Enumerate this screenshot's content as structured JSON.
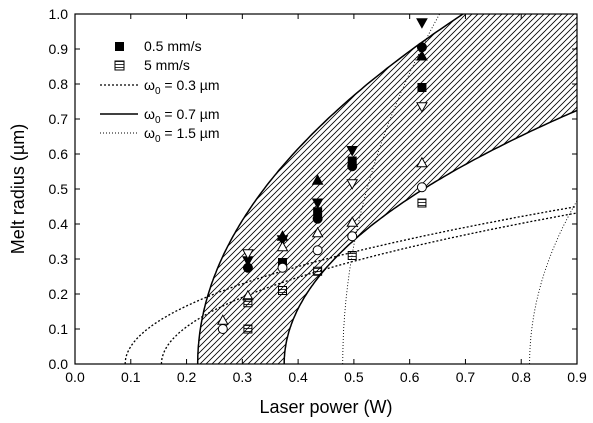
{
  "chart_data": {
    "type": "scatter",
    "xlabel": "Laser power (W)",
    "ylabel": "Melt radius (µm)",
    "xlim": [
      0.0,
      0.9
    ],
    "ylim": [
      0.0,
      1.0
    ],
    "x_ticks": [
      "0.0",
      "0.1",
      "0.2",
      "0.3",
      "0.4",
      "0.5",
      "0.6",
      "0.7",
      "0.8",
      "0.9"
    ],
    "y_ticks": [
      "0.0",
      "0.1",
      "0.2",
      "0.3",
      "0.4",
      "0.5",
      "0.6",
      "0.7",
      "0.8",
      "0.9",
      "1.0"
    ],
    "grid": false,
    "legend": {
      "placement": "top-left",
      "entries": [
        {
          "label": "0.5 mm/s",
          "marker": "filled-square"
        },
        {
          "label": "5 mm/s",
          "marker": "hatched-square"
        },
        {
          "symbol": "ω",
          "subscript": "0",
          "rest": " = 0.3 µm",
          "line": "dotted"
        },
        {
          "symbol": "ω",
          "subscript": "0",
          "rest": " = 0.7 µm",
          "line": "solid"
        },
        {
          "symbol": "ω",
          "subscript": "0",
          "rest": " = 1.5 µm",
          "line": "fine-dotted"
        }
      ]
    },
    "curves": [
      {
        "style": "dotted",
        "threshold": 0.09,
        "coef": 0.5
      },
      {
        "style": "dotted",
        "threshold": 0.155,
        "coef": 0.5
      },
      {
        "style": "solid",
        "threshold": 0.22,
        "coef": 1.45
      },
      {
        "style": "solid",
        "threshold": 0.375,
        "coef": 1.0
      },
      {
        "style": "fine-dotted",
        "threshold": 0.48,
        "coef": 2.4
      },
      {
        "style": "fine-dotted",
        "threshold": 0.815,
        "coef": 1.6
      }
    ],
    "shaded_band": {
      "between_curves": [
        2,
        3
      ],
      "pattern": "diagonal-hatch"
    },
    "series": [
      {
        "name": "0.5 mm/s",
        "fill": "filled",
        "points": [
          {
            "x": 0.31,
            "y": 0.295,
            "marker": "triangle-down"
          },
          {
            "x": 0.31,
            "y": 0.275,
            "marker": "circle"
          },
          {
            "x": 0.372,
            "y": 0.355,
            "marker": "triangle-down"
          },
          {
            "x": 0.372,
            "y": 0.365,
            "marker": "triangle-up"
          },
          {
            "x": 0.372,
            "y": 0.29,
            "marker": "square"
          },
          {
            "x": 0.435,
            "y": 0.525,
            "marker": "triangle-up"
          },
          {
            "x": 0.435,
            "y": 0.46,
            "marker": "triangle-down"
          },
          {
            "x": 0.435,
            "y": 0.435,
            "marker": "square"
          },
          {
            "x": 0.435,
            "y": 0.415,
            "marker": "circle"
          },
          {
            "x": 0.497,
            "y": 0.61,
            "marker": "triangle-down"
          },
          {
            "x": 0.497,
            "y": 0.58,
            "marker": "square"
          },
          {
            "x": 0.497,
            "y": 0.565,
            "marker": "circle"
          },
          {
            "x": 0.622,
            "y": 0.975,
            "marker": "triangle-down"
          },
          {
            "x": 0.622,
            "y": 0.905,
            "marker": "circle"
          },
          {
            "x": 0.622,
            "y": 0.88,
            "marker": "triangle-up"
          },
          {
            "x": 0.622,
            "y": 0.79,
            "marker": "square"
          }
        ]
      },
      {
        "name": "5 mm/s",
        "fill": "open",
        "points": [
          {
            "x": 0.265,
            "y": 0.125,
            "marker": "triangle-up"
          },
          {
            "x": 0.265,
            "y": 0.1,
            "marker": "circle"
          },
          {
            "x": 0.31,
            "y": 0.315,
            "marker": "triangle-down"
          },
          {
            "x": 0.31,
            "y": 0.195,
            "marker": "triangle-up"
          },
          {
            "x": 0.31,
            "y": 0.175,
            "marker": "square"
          },
          {
            "x": 0.31,
            "y": 0.1,
            "marker": "square"
          },
          {
            "x": 0.372,
            "y": 0.335,
            "marker": "triangle-up"
          },
          {
            "x": 0.372,
            "y": 0.275,
            "marker": "circle"
          },
          {
            "x": 0.372,
            "y": 0.21,
            "marker": "square"
          },
          {
            "x": 0.435,
            "y": 0.375,
            "marker": "triangle-up"
          },
          {
            "x": 0.435,
            "y": 0.325,
            "marker": "circle"
          },
          {
            "x": 0.435,
            "y": 0.265,
            "marker": "square"
          },
          {
            "x": 0.497,
            "y": 0.515,
            "marker": "triangle-down"
          },
          {
            "x": 0.497,
            "y": 0.405,
            "marker": "triangle-up"
          },
          {
            "x": 0.497,
            "y": 0.365,
            "marker": "circle"
          },
          {
            "x": 0.497,
            "y": 0.31,
            "marker": "square"
          },
          {
            "x": 0.622,
            "y": 0.735,
            "marker": "triangle-down"
          },
          {
            "x": 0.622,
            "y": 0.575,
            "marker": "triangle-up"
          },
          {
            "x": 0.622,
            "y": 0.505,
            "marker": "circle"
          },
          {
            "x": 0.622,
            "y": 0.46,
            "marker": "square"
          }
        ]
      }
    ]
  }
}
